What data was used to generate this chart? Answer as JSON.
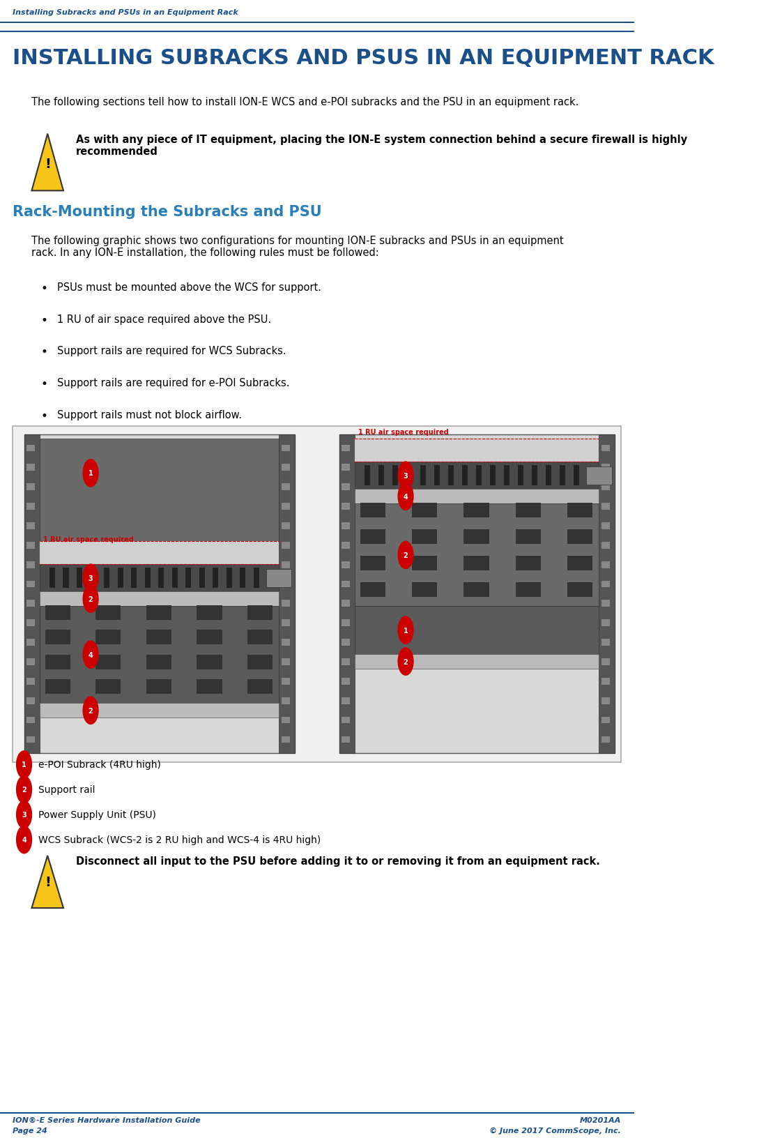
{
  "page_width": 10.89,
  "page_height": 16.33,
  "bg_color": "#ffffff",
  "blue_dark": "#1a4f8a",
  "blue_medium": "#1a6496",
  "blue_light": "#2980b9",
  "header_text": "Installing Subracks and PSUs in an Equipment Rack",
  "header_line_color": "#1a4f8a",
  "title_color": "#1a4f8a",
  "intro_text": "The following sections tell how to install ION-E WCS and e-POI subracks and the PSU in an equipment rack.",
  "warning1_text": "As with any piece of IT equipment, placing the ION-E system connection behind a secure firewall is highly\nrecommended",
  "section_title": "Rack-Mounting the Subracks and PSU",
  "section_title_color": "#2980b9",
  "section_intro": "The following graphic shows two configurations for mounting ION-E subracks and PSUs in an equipment\nrack. In any ION-E installation, the following rules must be followed:",
  "bullets": [
    "PSUs must be mounted above the WCS for support.",
    "1 RU of air space required above the PSU.",
    "Support rails are required for WCS Subracks.",
    "Support rails are required for e-POI Subracks.",
    "Support rails must not block airflow."
  ],
  "legend_items": [
    {
      "num": "1",
      "text": "e-POI Subrack (4RU high)"
    },
    {
      "num": "2",
      "text": "Support rail"
    },
    {
      "num": "3",
      "text": "Power Supply Unit (PSU)"
    },
    {
      "num": "4",
      "text": "WCS Subrack (WCS-2 is 2 RU high and WCS-4 is 4RU high)"
    }
  ],
  "warning2_text": "Disconnect all input to the PSU before adding it to or removing it from an equipment rack.",
  "footer_left1": "ION®-E Series Hardware Installation Guide",
  "footer_left2": "Page 24",
  "footer_right1": "M0201AA",
  "footer_right2": "© June 2017 CommScope, Inc.",
  "footer_color": "#1a4f8a",
  "label_circle_color": "#cc0000",
  "label_text_color": "#ffffff",
  "air_space_text_color": "#cc0000"
}
